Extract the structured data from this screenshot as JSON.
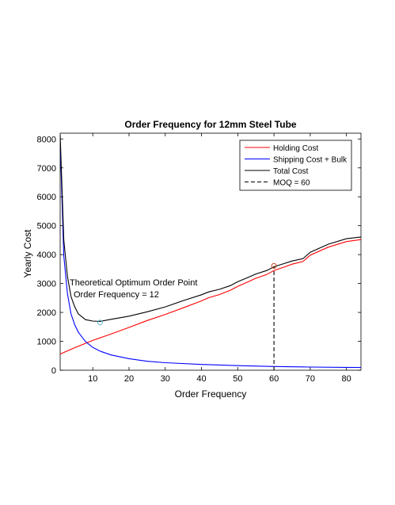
{
  "chart_data": {
    "type": "line",
    "title": "Order Frequency for 12mm Steel Tube",
    "xlabel": "Order Frequency",
    "ylabel": "Yearly Cost",
    "xlim": [
      1,
      84
    ],
    "ylim": [
      0,
      8200
    ],
    "xticks": [
      10,
      20,
      30,
      40,
      50,
      60,
      70,
      80
    ],
    "yticks": [
      0,
      1000,
      2000,
      3000,
      4000,
      5000,
      6000,
      7000,
      8000
    ],
    "legend_position": "top-right",
    "series": [
      {
        "name": "Holding Cost",
        "color": "#ff0000",
        "x": [
          1,
          5,
          10,
          15,
          20,
          25,
          30,
          35,
          40,
          42,
          45,
          48,
          50,
          53,
          55,
          58,
          60,
          63,
          65,
          68,
          70,
          75,
          80,
          84
        ],
        "y": [
          560,
          780,
          1030,
          1250,
          1480,
          1720,
          1930,
          2160,
          2400,
          2510,
          2620,
          2770,
          2900,
          3070,
          3180,
          3310,
          3450,
          3580,
          3670,
          3760,
          3980,
          4260,
          4450,
          4520
        ]
      },
      {
        "name": "Shipping Cost + Bulk",
        "color": "#0000ff",
        "x": [
          1,
          2,
          3,
          4,
          5,
          6,
          8,
          10,
          12,
          15,
          20,
          25,
          30,
          40,
          50,
          60,
          70,
          80,
          84
        ],
        "y": [
          7900,
          3950,
          2650,
          1950,
          1580,
          1320,
          990,
          790,
          660,
          530,
          400,
          310,
          260,
          200,
          160,
          130,
          110,
          100,
          95
        ]
      },
      {
        "name": "Total Cost",
        "color": "#000000",
        "x": [
          1,
          2,
          3,
          4,
          5,
          6,
          8,
          10,
          12,
          15,
          20,
          25,
          30,
          35,
          40,
          42,
          45,
          48,
          50,
          53,
          55,
          58,
          60,
          63,
          65,
          68,
          70,
          75,
          80,
          84
        ],
        "y": [
          8150,
          4500,
          3250,
          2550,
          2200,
          1950,
          1750,
          1700,
          1690,
          1760,
          1870,
          2020,
          2190,
          2410,
          2610,
          2710,
          2800,
          2930,
          3060,
          3220,
          3330,
          3450,
          3580,
          3700,
          3780,
          3860,
          4080,
          4360,
          4550,
          4610
        ]
      },
      {
        "name": "MOQ = 60",
        "color": "#000000",
        "style": "dashed",
        "x": [
          60,
          60
        ],
        "y": [
          0,
          3580
        ]
      }
    ],
    "markers": [
      {
        "x": 12,
        "y": 1650,
        "color": "#5bb8d4"
      },
      {
        "x": 60,
        "y": 3610,
        "color": "#d04020"
      }
    ],
    "annotation": {
      "line1": "Theoretical Optimum Order Point",
      "line2": "Order Frequency = 12"
    }
  }
}
